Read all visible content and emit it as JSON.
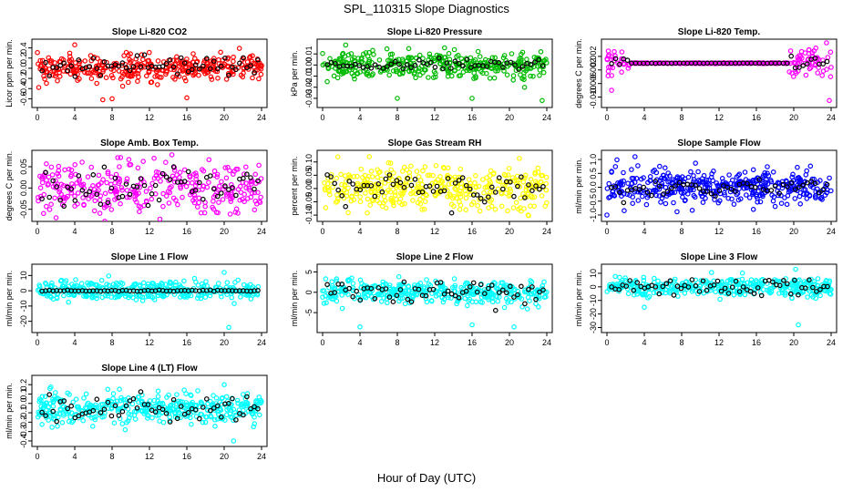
{
  "figure": {
    "title": "SPL_110315  Slope Diagnostics",
    "xlabel": "Hour of Day (UTC)"
  },
  "chart_data": [
    {
      "type": "scatter",
      "title": "Slope Li-820 CO2",
      "ylabel": "Licor ppm per min.",
      "color": "#ff0000",
      "xlim": [
        0,
        24
      ],
      "ylim": [
        -0.7,
        0.5
      ],
      "xticks": [
        0,
        4,
        8,
        12,
        16,
        20,
        24
      ],
      "yticks": [
        -0.6,
        -0.4,
        -0.2,
        0.0,
        0.2,
        0.4
      ],
      "ytick_labels": [
        "-0.6",
        "-0.4",
        "-0.2",
        "0.0",
        "0.2",
        "0.4"
      ],
      "noise": {
        "center": 0.0,
        "spread": 0.13,
        "n": 360,
        "seed": 11,
        "outliers": [
          [
            4,
            0.46
          ],
          [
            7,
            -0.62
          ],
          [
            8,
            -0.6
          ],
          [
            16,
            -0.58
          ]
        ]
      },
      "black_noise": {
        "center": 0.05,
        "spread": 0.08,
        "n": 60,
        "seed": 12
      }
    },
    {
      "type": "scatter",
      "title": "Slope Li-820 Pressure",
      "ylabel": "kPa per min.",
      "color": "#00bb00",
      "xlim": [
        0,
        24
      ],
      "ylim": [
        -0.035,
        0.02
      ],
      "xticks": [
        0,
        4,
        8,
        12,
        16,
        20,
        24
      ],
      "yticks": [
        -0.03,
        -0.02,
        -0.01,
        0.0,
        0.01
      ],
      "ytick_labels": [
        "-0.03",
        "-0.02",
        "-0.01",
        "0.00",
        "0.01"
      ],
      "noise": {
        "center": 0.0,
        "spread": 0.006,
        "n": 360,
        "seed": 21,
        "outliers": [
          [
            0.5,
            -0.015
          ],
          [
            8,
            -0.03
          ],
          [
            16,
            -0.03
          ],
          [
            23.5,
            -0.032
          ]
        ]
      },
      "black_noise": {
        "center": 0.0,
        "spread": 0.002,
        "n": 55,
        "seed": 22
      }
    },
    {
      "type": "scatter",
      "title": "Slope Li-820 Temp.",
      "ylabel": "degrees C per min.",
      "color": "#ff00ff",
      "xlim": [
        0,
        24
      ],
      "ylim": [
        -0.012,
        0.006
      ],
      "xticks": [
        0,
        4,
        8,
        12,
        16,
        20,
        24
      ],
      "yticks": [
        -0.01,
        -0.006,
        -0.002,
        0.002
      ],
      "ytick_labels": [
        "-0.010",
        "-0.006",
        "-0.002",
        "0.002"
      ],
      "temp_profile": true,
      "noise": {
        "center": 0.0,
        "spread": 0.002,
        "n": 340,
        "seed": 31,
        "outliers": [
          [
            0.5,
            -0.008
          ],
          [
            23.8,
            -0.011
          ],
          [
            23.5,
            0.006
          ]
        ]
      },
      "black_noise": {
        "center": 0.0,
        "spread": 0.001,
        "n": 55,
        "seed": 32
      }
    },
    {
      "type": "scatter",
      "title": "Slope Amb. Box Temp.",
      "ylabel": "degrees C per min.",
      "color": "#ff00ff",
      "xlim": [
        0,
        24
      ],
      "ylim": [
        -0.07,
        0.08
      ],
      "xticks": [
        0,
        4,
        8,
        12,
        16,
        20,
        24
      ],
      "yticks": [
        -0.05,
        0.0,
        0.05
      ],
      "ytick_labels": [
        "-0.05",
        "0.00",
        "0.05"
      ],
      "noise": {
        "center": 0.0,
        "spread": 0.03,
        "n": 320,
        "seed": 41,
        "outliers": [
          [
            12.5,
            0.07
          ],
          [
            2,
            -0.07
          ]
        ]
      },
      "black_noise": {
        "center": 0.0,
        "spread": 0.025,
        "n": 60,
        "seed": 42
      }
    },
    {
      "type": "scatter",
      "title": "Slope Gas Stream RH",
      "ylabel": "percent per min.",
      "color": "#ffff00",
      "xlim": [
        0,
        24
      ],
      "ylim": [
        -0.11,
        0.13
      ],
      "xticks": [
        0,
        4,
        8,
        12,
        16,
        20,
        24
      ],
      "yticks": [
        -0.1,
        -0.05,
        0.0,
        0.05,
        0.1
      ],
      "ytick_labels": [
        "-0.10",
        "-0.05",
        "0.00",
        "0.05",
        "0.10"
      ],
      "noise": {
        "center": 0.0,
        "spread": 0.04,
        "n": 380,
        "seed": 51,
        "outliers": [
          [
            5,
            0.12
          ],
          [
            22,
            -0.1
          ]
        ]
      },
      "black_noise": {
        "center": 0.0,
        "spread": 0.03,
        "n": 60,
        "seed": 52
      }
    },
    {
      "type": "scatter",
      "title": "Slope Sample Flow",
      "ylabel": "ml/min per min.",
      "color": "#0000ff",
      "xlim": [
        0,
        24
      ],
      "ylim": [
        -1.1,
        1.2
      ],
      "xticks": [
        0,
        4,
        8,
        12,
        16,
        20,
        24
      ],
      "yticks": [
        -1.0,
        -0.5,
        0.0,
        0.5,
        1.0
      ],
      "ytick_labels": [
        "-1.0",
        "-0.5",
        "0.0",
        "0.5",
        "1.0"
      ],
      "noise": {
        "center": 0.0,
        "spread": 0.3,
        "n": 420,
        "seed": 61,
        "outliers": [
          [
            0,
            -1.0
          ],
          [
            3,
            1.1
          ]
        ]
      },
      "black_noise": {
        "center": 0.0,
        "spread": 0.15,
        "n": 55,
        "seed": 62
      }
    },
    {
      "type": "scatter",
      "title": "Slope Line 1 Flow",
      "ylabel": "ml/min per min.",
      "color": "#00ffff",
      "xlim": [
        0,
        24
      ],
      "ylim": [
        -25,
        15
      ],
      "xticks": [
        0,
        4,
        8,
        12,
        16,
        20,
        24
      ],
      "yticks": [
        -20,
        -10,
        0,
        10
      ],
      "ytick_labels": [
        "-20",
        "-10",
        "0",
        "10"
      ],
      "noise": {
        "center": 0.0,
        "spread": 3.0,
        "n": 380,
        "seed": 71,
        "outliers": [
          [
            20.5,
            -24
          ],
          [
            20,
            12
          ]
        ]
      },
      "black_noise": {
        "center": 0.0,
        "spread": 0.3,
        "n": 60,
        "seed": 72
      }
    },
    {
      "type": "scatter",
      "title": "Slope Line 2 Flow",
      "ylabel": "ml/min per min.",
      "color": "#00ffff",
      "xlim": [
        0,
        24
      ],
      "ylim": [
        -9,
        6
      ],
      "xticks": [
        0,
        4,
        8,
        12,
        16,
        20,
        24
      ],
      "yticks": [
        -5,
        0,
        5
      ],
      "ytick_labels": [
        "-5",
        "0",
        "5"
      ],
      "noise": {
        "center": 0.0,
        "spread": 1.4,
        "n": 380,
        "seed": 81,
        "outliers": [
          [
            4,
            -8.5
          ],
          [
            16,
            -8
          ],
          [
            20.5,
            -8.5
          ]
        ]
      },
      "black_noise": {
        "center": 0.0,
        "spread": 1.5,
        "n": 60,
        "seed": 82
      }
    },
    {
      "type": "scatter",
      "title": "Slope Line 3 Flow",
      "ylabel": "ml/min per min.",
      "color": "#00ffff",
      "xlim": [
        0,
        24
      ],
      "ylim": [
        -31,
        14
      ],
      "xticks": [
        0,
        4,
        8,
        12,
        16,
        20,
        24
      ],
      "yticks": [
        -30,
        -20,
        -10,
        0,
        10
      ],
      "ytick_labels": [
        "-30",
        "-20",
        "-10",
        "0",
        "10"
      ],
      "noise": {
        "center": 0.0,
        "spread": 3.5,
        "n": 380,
        "seed": 91,
        "outliers": [
          [
            4,
            -15
          ],
          [
            20.5,
            -28
          ],
          [
            20.2,
            13
          ]
        ]
      },
      "black_noise": {
        "center": 0.0,
        "spread": 3.0,
        "n": 60,
        "seed": 92
      }
    },
    {
      "type": "scatter",
      "title": "Slope Line 4 (LT) Flow",
      "ylabel": "ml/min per min.",
      "color": "#00ffff",
      "xlim": [
        0,
        24
      ],
      "ylim": [
        -0.42,
        0.26
      ],
      "xticks": [
        0,
        4,
        8,
        12,
        16,
        20,
        24
      ],
      "yticks": [
        -0.4,
        -0.3,
        -0.2,
        -0.1,
        0.0,
        0.1,
        0.2
      ],
      "ytick_labels": [
        "-0.4",
        "-0.3",
        "-0.2",
        "-0.1",
        "0.0",
        "0.1",
        "0.2"
      ],
      "noise": {
        "center": -0.05,
        "spread": 0.08,
        "n": 400,
        "seed": 101,
        "outliers": [
          [
            21,
            -0.4
          ],
          [
            20,
            0.2
          ]
        ]
      },
      "black_noise": {
        "center": -0.05,
        "spread": 0.08,
        "n": 60,
        "seed": 102
      }
    }
  ]
}
